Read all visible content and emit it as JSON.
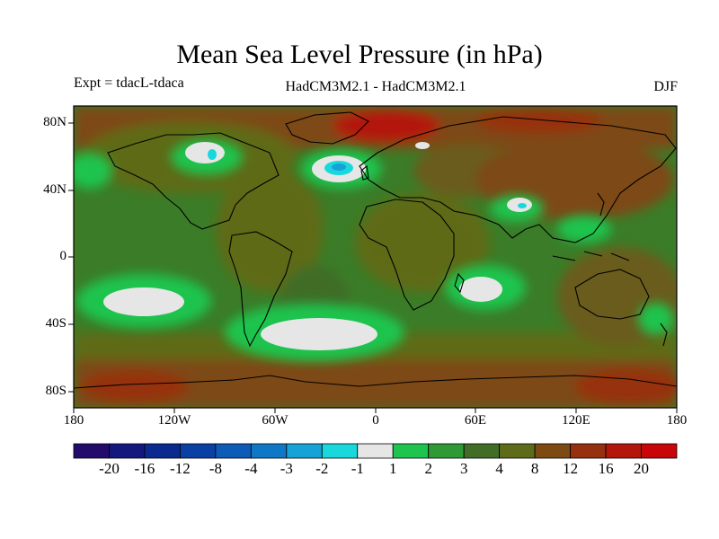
{
  "title": "Mean Sea Level Pressure (in hPa)",
  "experiment": "Expt = tdacL-tdaca",
  "models": "HadCM3M2.1 - HadCM3M2.1",
  "season": "DJF",
  "lat_labels": [
    "80N",
    "40N",
    "0",
    "40S",
    "80S"
  ],
  "lon_labels": [
    "180",
    "120W",
    "60W",
    "0",
    "60E",
    "120E",
    "180"
  ],
  "colorbar": {
    "labels": [
      "-20",
      "-16",
      "-12",
      "-8",
      "-4",
      "-3",
      "-2",
      "-1",
      "1",
      "2",
      "3",
      "4",
      "8",
      "12",
      "16",
      "20"
    ],
    "colors": [
      "#230b6b",
      "#14187e",
      "#0a2a8f",
      "#0a3fa3",
      "#0c5bb6",
      "#0f78c6",
      "#15a2d6",
      "#18d8dc",
      "#e6e6e6",
      "#1ec44e",
      "#2f9a35",
      "#416d26",
      "#5e6b18",
      "#7d4a14",
      "#96300e",
      "#b3160a",
      "#c8060a"
    ]
  },
  "colors": {
    "ocean_base": "#3b7c28",
    "land_warm": "#6b5c1a",
    "coastline": "#000000"
  }
}
